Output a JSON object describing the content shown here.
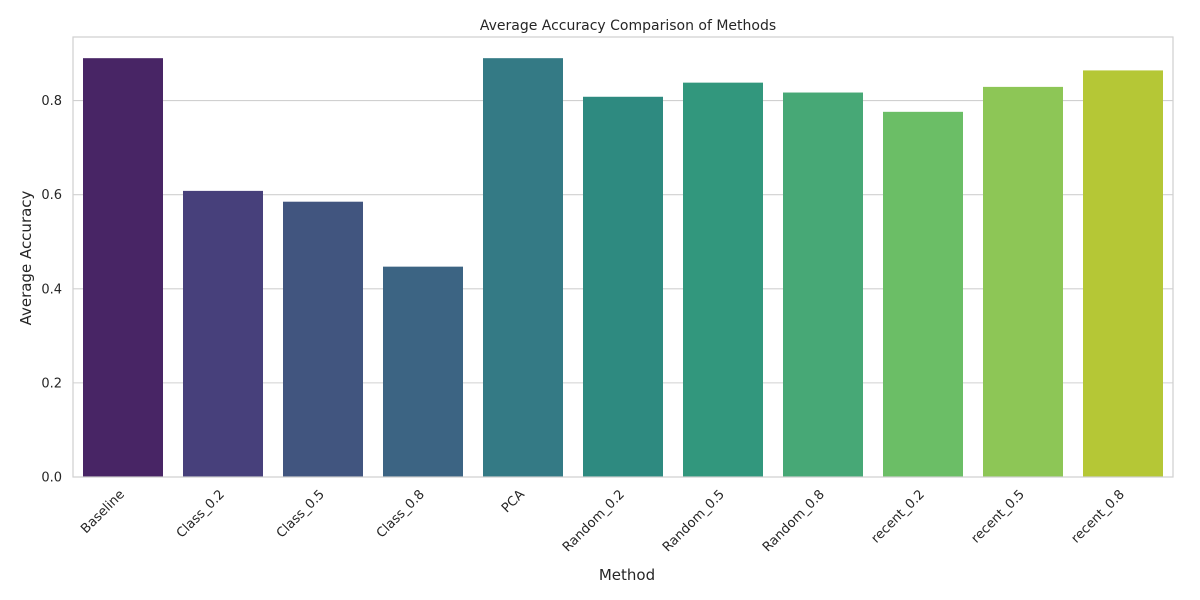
{
  "chart_data": {
    "type": "bar",
    "title": "Average Accuracy Comparison of Methods",
    "xlabel": "Method",
    "ylabel": "Average Accuracy",
    "categories": [
      "Baseline",
      "Class_0.2",
      "Class_0.5",
      "Class_0.8",
      "PCA",
      "Random_0.2",
      "Random_0.5",
      "Random_0.8",
      "recent_0.2",
      "recent_0.5",
      "recent_0.8"
    ],
    "values": [
      0.89,
      0.608,
      0.585,
      0.447,
      0.89,
      0.808,
      0.838,
      0.817,
      0.776,
      0.829,
      0.864
    ],
    "colors": [
      "#482565",
      "#47407b",
      "#41557f",
      "#3c6483",
      "#347a85",
      "#2e8a80",
      "#32977d",
      "#47a876",
      "#6bbe66",
      "#8dc656",
      "#b5c736"
    ],
    "ylim": [
      0,
      0.935
    ],
    "yticks": [
      "0.0",
      "0.2",
      "0.4",
      "0.6",
      "0.8"
    ],
    "ytick_values": [
      0,
      0.2,
      0.4,
      0.6,
      0.8
    ],
    "grid": "horizontal",
    "legend": "none"
  }
}
